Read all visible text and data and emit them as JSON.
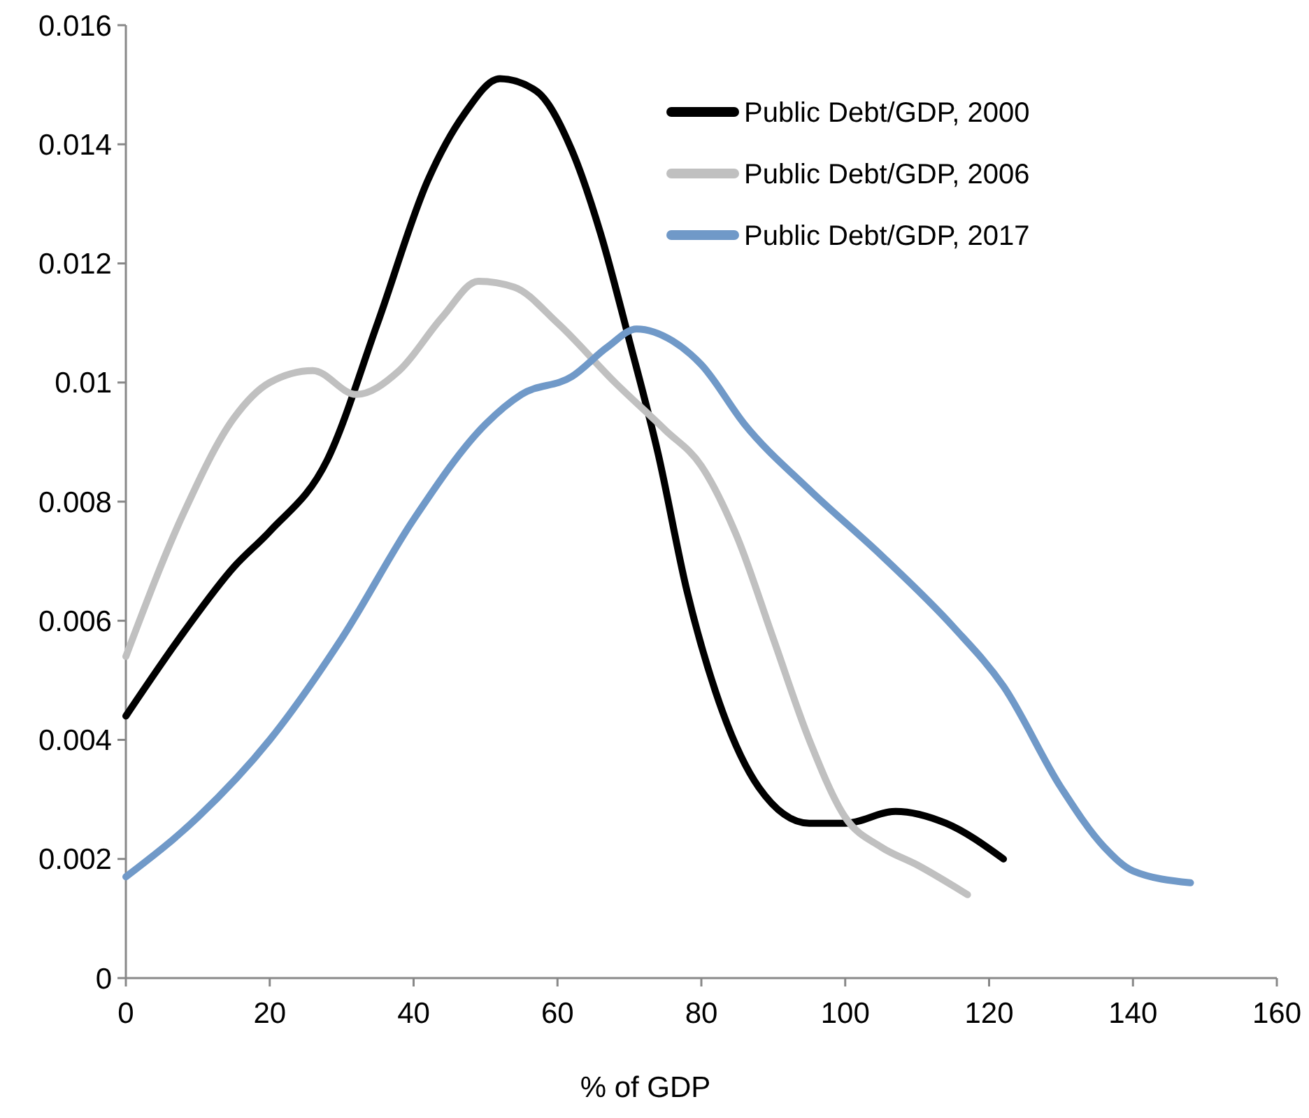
{
  "chart_data": {
    "type": "line",
    "xlabel": "% of GDP",
    "xlim": [
      0,
      160
    ],
    "xticks": [
      0,
      20,
      40,
      60,
      80,
      100,
      120,
      140,
      160
    ],
    "ylim": [
      0,
      0.016
    ],
    "yticks": [
      0,
      0.002,
      0.004,
      0.006,
      0.008,
      0.01,
      0.012,
      0.014,
      0.016
    ],
    "grid": false,
    "legend": "top right",
    "line_style": "solid",
    "series": [
      {
        "name": "Public Debt/GDP, 2000",
        "color": "#000000",
        "x": [
          0,
          8,
          15,
          20,
          28,
          35,
          42,
          47,
          52,
          57,
          62,
          66,
          70,
          74,
          78,
          82,
          88,
          95,
          100,
          107,
          114,
          122
        ],
        "values": [
          0.0044,
          0.0058,
          0.0069,
          0.0075,
          0.0087,
          0.011,
          0.0134,
          0.0145,
          0.0151,
          0.0149,
          0.0139,
          0.0125,
          0.0107,
          0.0088,
          0.0065,
          0.0048,
          0.0032,
          0.0026,
          0.0026,
          0.0028,
          0.0026,
          0.002
        ]
      },
      {
        "name": "Public Debt/GDP, 2006",
        "color": "#c0c0c0",
        "x": [
          0,
          8,
          15,
          20,
          26,
          32,
          38,
          44,
          49,
          54,
          60,
          68,
          75,
          80,
          85,
          90,
          95,
          100,
          105,
          110,
          117
        ],
        "values": [
          0.0054,
          0.0078,
          0.0094,
          0.01,
          0.0102,
          0.0098,
          0.0102,
          0.0111,
          0.0117,
          0.0116,
          0.011,
          0.01,
          0.0092,
          0.0086,
          0.0074,
          0.0057,
          0.004,
          0.0027,
          0.0022,
          0.0019,
          0.0014
        ]
      },
      {
        "name": "Public Debt/GDP, 2017",
        "color": "#7099c8",
        "x": [
          0,
          10,
          20,
          30,
          40,
          50,
          55,
          62,
          67,
          71,
          76,
          80,
          86,
          95,
          105,
          115,
          122,
          130,
          136,
          140,
          148
        ],
        "values": [
          0.0017,
          0.0027,
          0.004,
          0.0057,
          0.0077,
          0.0093,
          0.0098,
          0.0101,
          0.0106,
          0.0109,
          0.0107,
          0.0103,
          0.0093,
          0.0082,
          0.0071,
          0.0059,
          0.0049,
          0.0032,
          0.0022,
          0.0018,
          0.0016
        ]
      }
    ]
  }
}
